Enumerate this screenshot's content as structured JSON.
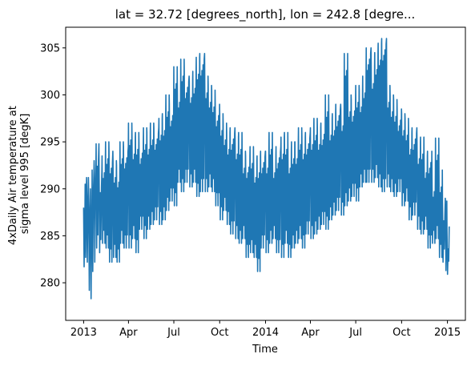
{
  "chart_data": {
    "type": "line",
    "title": "lat = 32.72 [degrees_north], lon = 242.8 [degre...",
    "xlabel": "Time",
    "ylabel": [
      "4xDaily Air temperature at",
      "sigma level 995 [degK]"
    ],
    "x_tick_labels": [
      "2013",
      "Apr",
      "Jul",
      "Oct",
      "2014",
      "Apr",
      "Jul",
      "Oct",
      "2015"
    ],
    "x_tick_dates": [
      "2013-01-01",
      "2013-04-01",
      "2013-07-01",
      "2013-10-01",
      "2014-01-01",
      "2014-04-01",
      "2014-07-01",
      "2014-10-01",
      "2015-01-01"
    ],
    "y_ticks": [
      280,
      285,
      290,
      295,
      300,
      305
    ],
    "xlim": [
      "2012-11-26",
      "2015-02-06"
    ],
    "ylim": [
      276.0,
      307.2
    ],
    "grid": false,
    "color": "#1f77b4",
    "series": [
      {
        "x": [
          "2013-01-01",
          "2013-01-04",
          "2013-01-07",
          "2013-01-11",
          "2013-01-15",
          "2013-01-18",
          "2013-01-22",
          "2013-01-26",
          "2013-02-01",
          "2013-02-07",
          "2013-02-14",
          "2013-02-21",
          "2013-03-01",
          "2013-03-08",
          "2013-03-15",
          "2013-03-22",
          "2013-04-01",
          "2013-04-08",
          "2013-04-15",
          "2013-04-22",
          "2013-05-01",
          "2013-05-08",
          "2013-05-15",
          "2013-05-22",
          "2013-06-01",
          "2013-06-08",
          "2013-06-15",
          "2013-06-22",
          "2013-07-01",
          "2013-07-08",
          "2013-07-15",
          "2013-07-22",
          "2013-08-01",
          "2013-08-08",
          "2013-08-15",
          "2013-08-22",
          "2013-09-01",
          "2013-09-08",
          "2013-09-15",
          "2013-09-22",
          "2013-10-01",
          "2013-10-08",
          "2013-10-15",
          "2013-10-22",
          "2013-11-01",
          "2013-11-08",
          "2013-11-15",
          "2013-11-22",
          "2013-12-01",
          "2013-12-08",
          "2013-12-15",
          "2013-12-22",
          "2014-01-01",
          "2014-01-08",
          "2014-01-15",
          "2014-01-22",
          "2014-02-01",
          "2014-02-08",
          "2014-02-15",
          "2014-02-22",
          "2014-03-01",
          "2014-03-08",
          "2014-03-15",
          "2014-03-22",
          "2014-04-01",
          "2014-04-08",
          "2014-04-15",
          "2014-04-22",
          "2014-05-01",
          "2014-05-08",
          "2014-05-15",
          "2014-05-22",
          "2014-06-01",
          "2014-06-08",
          "2014-06-15",
          "2014-06-22",
          "2014-07-01",
          "2014-07-08",
          "2014-07-15",
          "2014-07-22",
          "2014-08-01",
          "2014-08-08",
          "2014-08-15",
          "2014-08-22",
          "2014-09-01",
          "2014-09-08",
          "2014-09-15",
          "2014-09-22",
          "2014-10-01",
          "2014-10-08",
          "2014-10-15",
          "2014-10-22",
          "2014-11-01",
          "2014-11-08",
          "2014-11-15",
          "2014-11-22",
          "2014-12-01",
          "2014-12-08",
          "2014-12-15",
          "2014-12-22",
          "2014-12-28",
          "2014-12-31"
        ],
        "min": [
          281.0,
          282.0,
          281.5,
          278.5,
          277.6,
          280.5,
          281.5,
          283.0,
          282.5,
          283.5,
          283.0,
          281.5,
          282.0,
          281.5,
          283.5,
          283.0,
          283.0,
          284.0,
          282.5,
          285.0,
          284.0,
          285.0,
          285.5,
          286.0,
          285.5,
          286.0,
          287.0,
          288.0,
          287.5,
          290.0,
          289.0,
          290.0,
          289.5,
          290.0,
          288.5,
          289.0,
          289.0,
          289.5,
          289.0,
          287.5,
          286.0,
          287.0,
          285.5,
          284.5,
          284.0,
          283.5,
          284.0,
          282.0,
          282.5,
          282.0,
          280.5,
          283.0,
          282.5,
          283.5,
          284.0,
          282.5,
          282.0,
          283.5,
          282.0,
          283.0,
          283.5,
          284.0,
          283.0,
          284.5,
          284.0,
          284.5,
          285.0,
          285.5,
          285.0,
          286.0,
          286.5,
          287.0,
          286.5,
          287.5,
          288.0,
          288.5,
          288.0,
          289.5,
          290.0,
          290.0,
          290.0,
          290.5,
          289.5,
          289.0,
          289.5,
          289.0,
          288.5,
          289.0,
          287.5,
          288.0,
          286.0,
          286.5,
          285.0,
          284.5,
          285.0,
          283.0,
          283.5,
          284.0,
          282.0,
          281.5,
          280.6,
          280.2
        ],
        "max": [
          288.0,
          290.5,
          291.2,
          290.0,
          288.5,
          292.0,
          293.0,
          294.8,
          292.0,
          293.5,
          295.0,
          294.0,
          293.0,
          292.5,
          295.0,
          294.5,
          297.0,
          295.5,
          296.0,
          295.0,
          296.5,
          296.0,
          297.0,
          296.5,
          297.5,
          298.0,
          300.0,
          299.0,
          303.0,
          301.0,
          303.8,
          302.0,
          301.5,
          302.5,
          304.0,
          304.4,
          302.0,
          301.0,
          300.5,
          299.0,
          298.0,
          297.0,
          296.0,
          296.5,
          295.5,
          296.0,
          294.0,
          293.5,
          294.5,
          293.0,
          293.5,
          294.0,
          294.0,
          296.0,
          293.5,
          294.5,
          295.5,
          296.0,
          294.0,
          295.0,
          295.0,
          296.5,
          295.5,
          296.0,
          296.5,
          297.5,
          296.5,
          297.0,
          300.0,
          297.5,
          298.0,
          299.0,
          298.5,
          304.4,
          300.0,
          299.5,
          301.0,
          300.5,
          302.0,
          305.0,
          303.0,
          304.5,
          305.5,
          306.0,
          301.0,
          300.0,
          299.5,
          298.5,
          298.0,
          297.5,
          296.0,
          296.5,
          295.0,
          295.5,
          293.5,
          294.0,
          291.5,
          295.4,
          292.0,
          289.0,
          288.7,
          286.0
        ]
      }
    ]
  }
}
